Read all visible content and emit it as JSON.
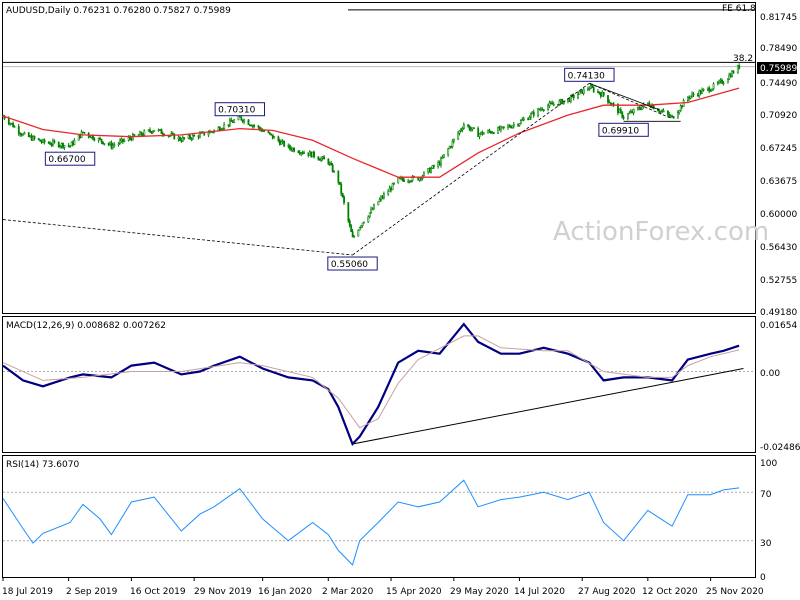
{
  "chart_data": [
    {
      "type": "candlestick",
      "header": "AUDUSD,Daily  0.76231 0.76280 0.75827 0.75989",
      "watermark": "ActionForex.com",
      "ylim": [
        0.4862,
        0.8305
      ],
      "y_tick_labels": [
        {
          "v": 0.81745,
          "t": "0.81745"
        },
        {
          "v": 0.7849,
          "t": "0.78490"
        },
        {
          "v": 0.7449,
          "t": "0.74490"
        },
        {
          "v": 0.7092,
          "t": "0.70920"
        },
        {
          "v": 0.67245,
          "t": "0.67245"
        },
        {
          "v": 0.6367,
          "t": "0.63675"
        },
        {
          "v": 0.6,
          "t": "0.60000"
        },
        {
          "v": 0.5643,
          "t": "0.56430"
        },
        {
          "v": 0.52755,
          "t": "0.52755"
        },
        {
          "v": 0.4918,
          "t": "0.49180"
        }
      ],
      "last_price": {
        "v": 0.75989,
        "t": "0.75989"
      },
      "fib_levels": [
        {
          "v": 0.8229,
          "t": "FE 61.8"
        },
        {
          "v": 0.7645,
          "t": "38.2"
        }
      ],
      "key_levels": [
        {
          "date": "2019-09-03",
          "v": 0.667,
          "t": "0.66700",
          "pos": "below"
        },
        {
          "date": "2019-12-31",
          "v": 0.7031,
          "t": "0.70310",
          "pos": "above"
        },
        {
          "date": "2020-03-19",
          "v": 0.5506,
          "t": "0.55060",
          "pos": "below"
        },
        {
          "date": "2020-09-01",
          "v": 0.7413,
          "t": "0.74130",
          "pos": "above"
        },
        {
          "date": "2020-09-25",
          "v": 0.6991,
          "t": "0.69910",
          "pos": "below"
        }
      ],
      "close": [
        {
          "date": "2019-07-18",
          "v": 0.705
        },
        {
          "date": "2019-08-01",
          "v": 0.684
        },
        {
          "date": "2019-08-15",
          "v": 0.676
        },
        {
          "date": "2019-09-03",
          "v": 0.672
        },
        {
          "date": "2019-09-12",
          "v": 0.687
        },
        {
          "date": "2019-10-02",
          "v": 0.672
        },
        {
          "date": "2019-10-16",
          "v": 0.681
        },
        {
          "date": "2019-11-01",
          "v": 0.69
        },
        {
          "date": "2019-11-20",
          "v": 0.679
        },
        {
          "date": "2019-12-03",
          "v": 0.684
        },
        {
          "date": "2019-12-13",
          "v": 0.689
        },
        {
          "date": "2019-12-31",
          "v": 0.703
        },
        {
          "date": "2020-01-16",
          "v": 0.689
        },
        {
          "date": "2020-02-03",
          "v": 0.67
        },
        {
          "date": "2020-02-20",
          "v": 0.662
        },
        {
          "date": "2020-03-02",
          "v": 0.654
        },
        {
          "date": "2020-03-09",
          "v": 0.633
        },
        {
          "date": "2020-03-19",
          "v": 0.569
        },
        {
          "date": "2020-03-24",
          "v": 0.583
        },
        {
          "date": "2020-04-06",
          "v": 0.61
        },
        {
          "date": "2020-04-20",
          "v": 0.634
        },
        {
          "date": "2020-05-04",
          "v": 0.636
        },
        {
          "date": "2020-05-19",
          "v": 0.653
        },
        {
          "date": "2020-06-05",
          "v": 0.696
        },
        {
          "date": "2020-06-15",
          "v": 0.685
        },
        {
          "date": "2020-07-01",
          "v": 0.69
        },
        {
          "date": "2020-07-14",
          "v": 0.698
        },
        {
          "date": "2020-07-31",
          "v": 0.715
        },
        {
          "date": "2020-08-17",
          "v": 0.723
        },
        {
          "date": "2020-09-01",
          "v": 0.737
        },
        {
          "date": "2020-09-11",
          "v": 0.728
        },
        {
          "date": "2020-09-25",
          "v": 0.704
        },
        {
          "date": "2020-10-12",
          "v": 0.719
        },
        {
          "date": "2020-10-29",
          "v": 0.703
        },
        {
          "date": "2020-11-09",
          "v": 0.726
        },
        {
          "date": "2020-11-25",
          "v": 0.736
        },
        {
          "date": "2020-12-04",
          "v": 0.744
        },
        {
          "date": "2020-12-15",
          "v": 0.76
        }
      ],
      "sma": [
        {
          "date": "2019-07-18",
          "v": 0.705
        },
        {
          "date": "2019-08-15",
          "v": 0.69
        },
        {
          "date": "2019-09-12",
          "v": 0.684
        },
        {
          "date": "2019-10-16",
          "v": 0.682
        },
        {
          "date": "2019-11-20",
          "v": 0.684
        },
        {
          "date": "2019-12-31",
          "v": 0.691
        },
        {
          "date": "2020-01-23",
          "v": 0.689
        },
        {
          "date": "2020-02-20",
          "v": 0.678
        },
        {
          "date": "2020-03-19",
          "v": 0.658
        },
        {
          "date": "2020-04-20",
          "v": 0.637
        },
        {
          "date": "2020-05-19",
          "v": 0.637
        },
        {
          "date": "2020-06-15",
          "v": 0.664
        },
        {
          "date": "2020-07-14",
          "v": 0.686
        },
        {
          "date": "2020-08-17",
          "v": 0.706
        },
        {
          "date": "2020-09-11",
          "v": 0.717
        },
        {
          "date": "2020-10-12",
          "v": 0.717
        },
        {
          "date": "2020-11-09",
          "v": 0.72
        },
        {
          "date": "2020-12-15",
          "v": 0.736
        }
      ],
      "trendlines": [
        {
          "style": "dashed",
          "points": [
            {
              "date": "2019-07-18",
              "v": 0.59
            },
            {
              "date": "2020-03-19",
              "v": 0.5506
            }
          ]
        },
        {
          "style": "dashed",
          "points": [
            {
              "date": "2020-03-19",
              "v": 0.5506
            },
            {
              "date": "2020-09-01",
              "v": 0.7413
            }
          ]
        },
        {
          "style": "solid",
          "points": [
            {
              "date": "2020-09-01",
              "v": 0.7413
            },
            {
              "date": "2020-10-20",
              "v": 0.712
            }
          ]
        },
        {
          "style": "dashed",
          "points": [
            {
              "date": "2020-09-01",
              "v": 0.7413
            },
            {
              "date": "2020-10-29",
              "v": 0.702
            }
          ]
        },
        {
          "style": "solid",
          "points": [
            {
              "date": "2020-09-25",
              "v": 0.6991
            },
            {
              "date": "2020-11-04",
              "v": 0.6991
            }
          ]
        }
      ]
    },
    {
      "type": "line",
      "title": "MACD(12,26,9) 0.008682 0.007262",
      "ylim": [
        -0.0272,
        0.0184
      ],
      "y_tick_labels": [
        {
          "v": 0.01654,
          "t": "0.01654"
        },
        {
          "v": 0.0,
          "t": "0.00"
        },
        {
          "v": -0.02486,
          "t": "-0.02486"
        }
      ],
      "series": [
        {
          "role": "macd",
          "color": "#000080",
          "points": [
            {
              "date": "2019-07-18",
              "v": 0.002
            },
            {
              "date": "2019-08-01",
              "v": -0.003
            },
            {
              "date": "2019-08-15",
              "v": -0.005
            },
            {
              "date": "2019-09-03",
              "v": -0.002
            },
            {
              "date": "2019-09-12",
              "v": -0.001
            },
            {
              "date": "2019-10-02",
              "v": -0.002
            },
            {
              "date": "2019-10-16",
              "v": 0.002
            },
            {
              "date": "2019-11-01",
              "v": 0.003
            },
            {
              "date": "2019-11-20",
              "v": -0.001
            },
            {
              "date": "2019-12-03",
              "v": 0.0
            },
            {
              "date": "2019-12-13",
              "v": 0.002
            },
            {
              "date": "2019-12-31",
              "v": 0.005
            },
            {
              "date": "2020-01-16",
              "v": 0.001
            },
            {
              "date": "2020-02-03",
              "v": -0.002
            },
            {
              "date": "2020-02-20",
              "v": -0.003
            },
            {
              "date": "2020-03-02",
              "v": -0.006
            },
            {
              "date": "2020-03-09",
              "v": -0.012
            },
            {
              "date": "2020-03-19",
              "v": -0.0245
            },
            {
              "date": "2020-03-24",
              "v": -0.022
            },
            {
              "date": "2020-04-06",
              "v": -0.012
            },
            {
              "date": "2020-04-20",
              "v": 0.003
            },
            {
              "date": "2020-05-04",
              "v": 0.007
            },
            {
              "date": "2020-05-19",
              "v": 0.006
            },
            {
              "date": "2020-06-05",
              "v": 0.016
            },
            {
              "date": "2020-06-15",
              "v": 0.01
            },
            {
              "date": "2020-07-01",
              "v": 0.006
            },
            {
              "date": "2020-07-14",
              "v": 0.006
            },
            {
              "date": "2020-07-31",
              "v": 0.008
            },
            {
              "date": "2020-08-17",
              "v": 0.006
            },
            {
              "date": "2020-09-01",
              "v": 0.003
            },
            {
              "date": "2020-09-11",
              "v": -0.003
            },
            {
              "date": "2020-09-25",
              "v": -0.002
            },
            {
              "date": "2020-10-12",
              "v": -0.002
            },
            {
              "date": "2020-10-29",
              "v": -0.003
            },
            {
              "date": "2020-11-09",
              "v": 0.004
            },
            {
              "date": "2020-11-25",
              "v": 0.006
            },
            {
              "date": "2020-12-04",
              "v": 0.007
            },
            {
              "date": "2020-12-15",
              "v": 0.0087
            }
          ]
        },
        {
          "role": "signal",
          "color": "#c8a0a0",
          "points": [
            {
              "date": "2019-07-18",
              "v": 0.003
            },
            {
              "date": "2019-08-15",
              "v": -0.003
            },
            {
              "date": "2019-09-12",
              "v": -0.002
            },
            {
              "date": "2019-10-16",
              "v": 0.0
            },
            {
              "date": "2019-11-20",
              "v": 0.0
            },
            {
              "date": "2019-12-31",
              "v": 0.003
            },
            {
              "date": "2020-01-16",
              "v": 0.002
            },
            {
              "date": "2020-02-20",
              "v": -0.002
            },
            {
              "date": "2020-03-09",
              "v": -0.009
            },
            {
              "date": "2020-03-24",
              "v": -0.019
            },
            {
              "date": "2020-04-06",
              "v": -0.016
            },
            {
              "date": "2020-04-20",
              "v": -0.004
            },
            {
              "date": "2020-05-04",
              "v": 0.004
            },
            {
              "date": "2020-06-05",
              "v": 0.012
            },
            {
              "date": "2020-06-15",
              "v": 0.012
            },
            {
              "date": "2020-07-01",
              "v": 0.008
            },
            {
              "date": "2020-07-31",
              "v": 0.007
            },
            {
              "date": "2020-08-17",
              "v": 0.007
            },
            {
              "date": "2020-09-11",
              "v": 0.0
            },
            {
              "date": "2020-10-12",
              "v": -0.002
            },
            {
              "date": "2020-10-29",
              "v": -0.002
            },
            {
              "date": "2020-11-09",
              "v": 0.002
            },
            {
              "date": "2020-11-25",
              "v": 0.005
            },
            {
              "date": "2020-12-15",
              "v": 0.0073
            }
          ]
        }
      ],
      "trendlines": [
        {
          "style": "solid",
          "points": [
            {
              "date": "2020-03-19",
              "v": -0.0245
            },
            {
              "date": "2020-12-18",
              "v": 0.001
            }
          ]
        }
      ]
    },
    {
      "type": "line",
      "title": "RSI(14) 73.6070",
      "ylim": [
        0,
        100
      ],
      "y_tick_labels": [
        {
          "v": 100,
          "t": "100"
        },
        {
          "v": 70,
          "t": "70"
        },
        {
          "v": 30,
          "t": "30"
        },
        {
          "v": 0,
          "t": "0"
        }
      ],
      "reference_lines": [
        70,
        30
      ],
      "series": [
        {
          "role": "rsi",
          "color": "#1e90ff",
          "points": [
            {
              "date": "2019-07-18",
              "v": 65
            },
            {
              "date": "2019-08-01",
              "v": 40
            },
            {
              "date": "2019-08-08",
              "v": 28
            },
            {
              "date": "2019-08-15",
              "v": 36
            },
            {
              "date": "2019-09-03",
              "v": 45
            },
            {
              "date": "2019-09-12",
              "v": 60
            },
            {
              "date": "2019-09-24",
              "v": 48
            },
            {
              "date": "2019-10-02",
              "v": 35
            },
            {
              "date": "2019-10-16",
              "v": 62
            },
            {
              "date": "2019-11-01",
              "v": 66
            },
            {
              "date": "2019-11-20",
              "v": 38
            },
            {
              "date": "2019-12-03",
              "v": 52
            },
            {
              "date": "2019-12-13",
              "v": 58
            },
            {
              "date": "2019-12-31",
              "v": 73
            },
            {
              "date": "2020-01-16",
              "v": 48
            },
            {
              "date": "2020-02-03",
              "v": 30
            },
            {
              "date": "2020-02-20",
              "v": 45
            },
            {
              "date": "2020-03-02",
              "v": 35
            },
            {
              "date": "2020-03-09",
              "v": 22
            },
            {
              "date": "2020-03-19",
              "v": 10
            },
            {
              "date": "2020-03-24",
              "v": 30
            },
            {
              "date": "2020-04-06",
              "v": 45
            },
            {
              "date": "2020-04-20",
              "v": 62
            },
            {
              "date": "2020-05-04",
              "v": 58
            },
            {
              "date": "2020-05-19",
              "v": 62
            },
            {
              "date": "2020-06-05",
              "v": 80
            },
            {
              "date": "2020-06-15",
              "v": 58
            },
            {
              "date": "2020-07-01",
              "v": 64
            },
            {
              "date": "2020-07-14",
              "v": 66
            },
            {
              "date": "2020-07-31",
              "v": 70
            },
            {
              "date": "2020-08-17",
              "v": 64
            },
            {
              "date": "2020-09-01",
              "v": 70
            },
            {
              "date": "2020-09-11",
              "v": 45
            },
            {
              "date": "2020-09-25",
              "v": 30
            },
            {
              "date": "2020-10-12",
              "v": 55
            },
            {
              "date": "2020-10-29",
              "v": 42
            },
            {
              "date": "2020-11-09",
              "v": 68
            },
            {
              "date": "2020-11-25",
              "v": 68
            },
            {
              "date": "2020-12-04",
              "v": 72
            },
            {
              "date": "2020-12-15",
              "v": 73.6
            }
          ]
        }
      ]
    }
  ],
  "date_axis": [
    {
      "date": "2019-07-18",
      "t": "18 Jul 2019"
    },
    {
      "date": "2019-09-02",
      "t": "2 Sep 2019"
    },
    {
      "date": "2019-10-16",
      "t": "16 Oct 2019"
    },
    {
      "date": "2019-11-29",
      "t": "29 Nov 2019"
    },
    {
      "date": "2020-01-16",
      "t": "16 Jan 2020"
    },
    {
      "date": "2020-03-02",
      "t": "2 Mar 2020"
    },
    {
      "date": "2020-04-15",
      "t": "15 Apr 2020"
    },
    {
      "date": "2020-05-29",
      "t": "29 May 2020"
    },
    {
      "date": "2020-07-14",
      "t": "14 Jul 2020"
    },
    {
      "date": "2020-08-27",
      "t": "27 Aug 2020"
    },
    {
      "date": "2020-10-12",
      "t": "12 Oct 2020"
    },
    {
      "date": "2020-11-25",
      "t": "25 Nov 2020"
    }
  ],
  "colors": {
    "candle": "#008000",
    "sma": "#e8282c",
    "macd": "#000080",
    "signal": "#c8a0a0",
    "rsi": "#1e90ff",
    "grid": "#aaaaaa",
    "frame": "#000000"
  }
}
